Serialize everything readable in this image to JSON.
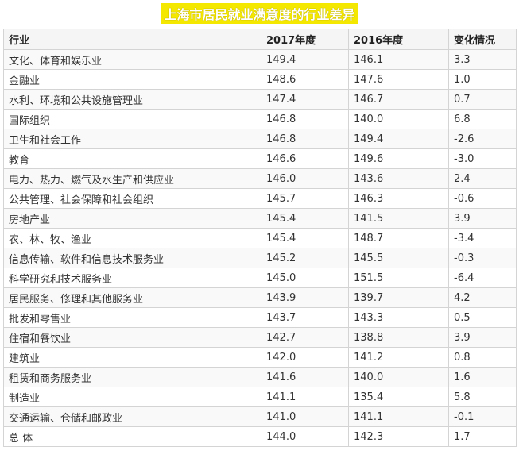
{
  "title": "上海市居民就业满意度的行业差异",
  "columns": [
    "行业",
    "2017年度",
    "2016年度",
    "变化情况"
  ],
  "rows": [
    [
      "文化、体育和娱乐业",
      "149.4",
      "146.1",
      "3.3"
    ],
    [
      "金融业",
      "148.6",
      "147.6",
      "1.0"
    ],
    [
      "水利、环境和公共设施管理业",
      "147.4",
      "146.7",
      "0.7"
    ],
    [
      "国际组织",
      "146.8",
      "140.0",
      "6.8"
    ],
    [
      "卫生和社会工作",
      "146.8",
      "149.4",
      "-2.6"
    ],
    [
      "教育",
      "146.6",
      "149.6",
      "-3.0"
    ],
    [
      "电力、热力、燃气及水生产和供应业",
      "146.0",
      "143.6",
      "2.4"
    ],
    [
      "公共管理、社会保障和社会组织",
      "145.7",
      "146.3",
      "-0.6"
    ],
    [
      "房地产业",
      "145.4",
      "141.5",
      "3.9"
    ],
    [
      "农、林、牧、渔业",
      "145.4",
      "148.7",
      "-3.4"
    ],
    [
      "信息传输、软件和信息技术服务业",
      "145.2",
      "145.5",
      "-0.3"
    ],
    [
      "科学研究和技术服务业",
      "145.0",
      "151.5",
      "-6.4"
    ],
    [
      "居民服务、修理和其他服务业",
      "143.9",
      "139.7",
      "4.2"
    ],
    [
      "批发和零售业",
      "143.7",
      "143.3",
      "0.5"
    ],
    [
      "住宿和餐饮业",
      "142.7",
      "138.8",
      "3.9"
    ],
    [
      "建筑业",
      "142.0",
      "141.2",
      "0.8"
    ],
    [
      "租赁和商务服务业",
      "141.6",
      "140.0",
      "1.6"
    ],
    [
      "制造业",
      "141.1",
      "135.4",
      "5.8"
    ],
    [
      "交通运输、仓储和邮政业",
      "141.0",
      "141.1",
      "-0.1"
    ],
    [
      "总 体",
      "144.0",
      "142.3",
      "1.7"
    ]
  ]
}
